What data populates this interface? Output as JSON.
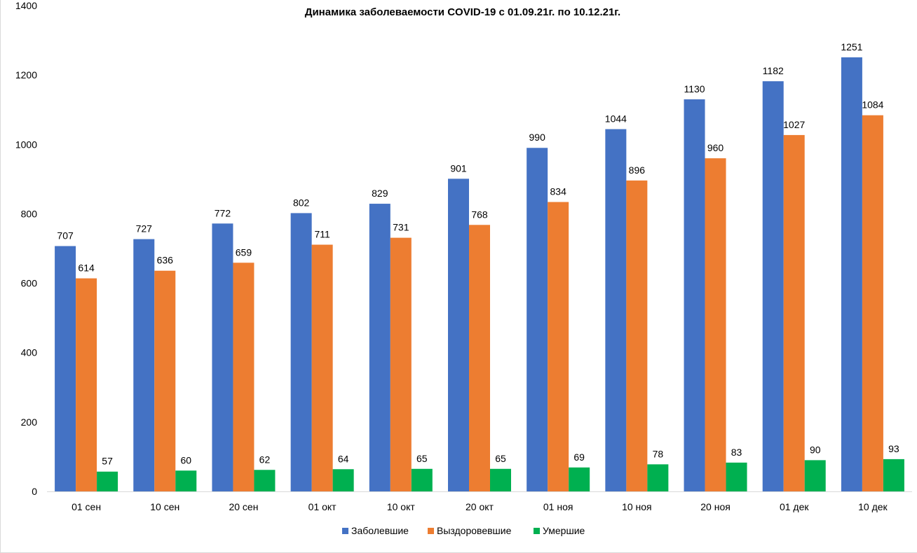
{
  "chart_data": {
    "type": "bar",
    "title": "Динамика заболеваемости COVID-19 с 01.09.21г. по 10.12.21г.",
    "xlabel": "",
    "ylabel": "",
    "ylim": [
      0,
      1400
    ],
    "yticks": [
      0,
      200,
      400,
      600,
      800,
      1000,
      1200,
      1400
    ],
    "grid": false,
    "legend_position": "bottom",
    "categories": [
      "01 сен",
      "10 сен",
      "20 сен",
      "01 окт",
      "10 окт",
      "20 окт",
      "01 ноя",
      "10 ноя",
      "20 ноя",
      "01 дек",
      "10 дек"
    ],
    "series": [
      {
        "name": "Заболевшие",
        "color": "#4472C4",
        "values": [
          707,
          727,
          772,
          802,
          829,
          901,
          990,
          1044,
          1130,
          1182,
          1251
        ]
      },
      {
        "name": "Выздоровевшие",
        "color": "#ED7D31",
        "values": [
          614,
          636,
          659,
          711,
          731,
          768,
          834,
          896,
          960,
          1027,
          1084
        ]
      },
      {
        "name": "Умершие",
        "color": "#00B050",
        "values": [
          57,
          60,
          62,
          64,
          65,
          65,
          69,
          78,
          83,
          90,
          93
        ]
      }
    ]
  }
}
